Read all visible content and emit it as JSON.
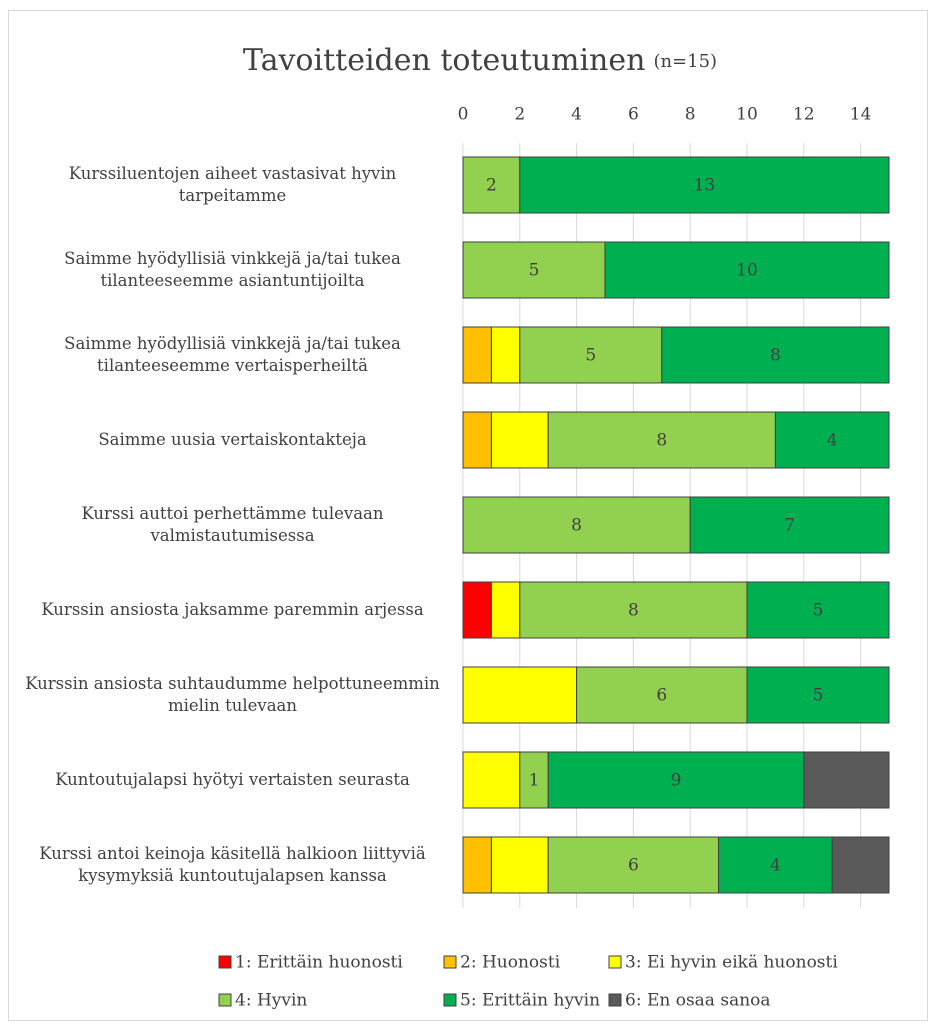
{
  "chart_data": {
    "type": "stacked-barh",
    "title": "Tavoitteiden toteutuminen",
    "subtitle": "(n=15)",
    "categories": [
      "Kurssiluentojen aiheet vastasivat hyvin tarpeitamme",
      "Saimme hyödyllisiä vinkkejä ja/tai tukea tilanteeseemme asiantuntijoilta",
      "Saimme hyödyllisiä vinkkejä ja/tai tukea tilanteeseemme vertaisperheiltä",
      "Saimme uusia vertaiskontakteja",
      "Kurssi auttoi perhettämme tulevaan valmistautumisessa",
      "Kurssin ansiosta jaksamme paremmin arjessa",
      "Kurssin ansiosta suhtaudumme helpottuneemmin mielin tulevaan",
      "Kuntoutujalapsi hyötyi vertaisten seurasta",
      "Kurssi antoi keinoja käsitellä halkioon liittyviä kysymyksiä kuntoutujalapsen kanssa"
    ],
    "series": [
      {
        "name": "1: Erittäin huonosti",
        "color": "#ff0000",
        "show_labels": false,
        "values": [
          0,
          0,
          0,
          0,
          0,
          1,
          0,
          0,
          0
        ]
      },
      {
        "name": "2: Huonosti",
        "color": "#ffc000",
        "show_labels": false,
        "values": [
          0,
          0,
          1,
          1,
          0,
          0,
          0,
          0,
          1
        ]
      },
      {
        "name": "3: Ei hyvin eikä huonosti",
        "color": "#ffff00",
        "show_labels": false,
        "values": [
          0,
          0,
          1,
          2,
          0,
          1,
          4,
          2,
          2
        ]
      },
      {
        "name": "4: Hyvin",
        "color": "#92d050",
        "show_labels": true,
        "values": [
          2,
          5,
          5,
          8,
          8,
          8,
          6,
          1,
          6
        ]
      },
      {
        "name": "5: Erittäin hyvin",
        "color": "#00b050",
        "show_labels": true,
        "values": [
          13,
          10,
          8,
          4,
          7,
          5,
          5,
          9,
          4
        ]
      },
      {
        "name": "6: En osaa sanoa",
        "color": "#595959",
        "show_labels": false,
        "values": [
          0,
          0,
          0,
          0,
          0,
          0,
          0,
          3,
          2
        ]
      }
    ],
    "xlim": [
      0,
      15
    ],
    "xticks": [
      0,
      2,
      4,
      6,
      8,
      10,
      12,
      14
    ],
    "grid": true,
    "legend": "bottom"
  }
}
